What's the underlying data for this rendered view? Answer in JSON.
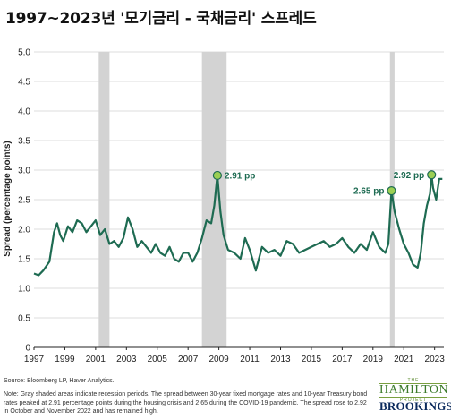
{
  "title": "1997~2023년 '모기금리 - 국채금리' 스프레드",
  "source": "Source: Bloomberg LP, Haver Analytics.",
  "note": "Note: Gray shaded areas indicate recession periods. The spread between 30-year fixed mortgage rates and 10-year Treasury bond rates peaked at 2.91 percentage points during the housing crisis and 2.65 during the COVID-19 pandemic. The spread rose to 2.92 in October and November 2022 and has remained high.",
  "logos": {
    "hamilton_top": "THE",
    "hamilton": "HAMILTON",
    "hamilton_bottom": "PROJECT",
    "brookings": "BROOKINGS"
  },
  "colors": {
    "line": "#1e6b52",
    "recession": "#d3d3d3",
    "marker": "#9bcf53"
  },
  "chart_data": {
    "type": "line",
    "ylabel": "Spread (percentage points)",
    "xlabel": "",
    "xlim": [
      1997,
      2023.6
    ],
    "ylim": [
      0,
      5.0
    ],
    "y_ticks": [
      "0",
      "0.5",
      "1.0",
      "1.5",
      "2.0",
      "2.5",
      "3.0",
      "3.5",
      "4.0",
      "4.5",
      "5.0"
    ],
    "x_ticks": [
      "1997",
      "1999",
      "2001",
      "2003",
      "2005",
      "2007",
      "2009",
      "2011",
      "2013",
      "2015",
      "2017",
      "2019",
      "2021",
      "2023"
    ],
    "grid": true,
    "recessions": [
      [
        2001.2,
        2001.9
      ],
      [
        2007.9,
        2009.5
      ],
      [
        2020.1,
        2020.4
      ]
    ],
    "annotations": [
      {
        "x": 2008.9,
        "y": 2.91,
        "label": "2.91 pp"
      },
      {
        "x": 2020.2,
        "y": 2.65,
        "label": "2.65 pp"
      },
      {
        "x": 2022.8,
        "y": 2.92,
        "label": "2.92 pp"
      }
    ],
    "series": [
      {
        "x": [
          1997.0,
          1997.3,
          1997.6,
          1998.0,
          1998.3,
          1998.5,
          1998.7,
          1998.9,
          1999.2,
          1999.5,
          1999.8,
          2000.1,
          2000.4,
          2000.7,
          2001.0,
          2001.3,
          2001.6,
          2001.9,
          2002.2,
          2002.5,
          2002.8,
          2003.1,
          2003.4,
          2003.7,
          2004.0,
          2004.3,
          2004.6,
          2004.9,
          2005.2,
          2005.5,
          2005.8,
          2006.1,
          2006.4,
          2006.7,
          2007.0,
          2007.3,
          2007.6,
          2007.9,
          2008.2,
          2008.5,
          2008.7,
          2008.9,
          2009.1,
          2009.3,
          2009.6,
          2010.0,
          2010.4,
          2010.7,
          2011.0,
          2011.4,
          2011.8,
          2012.2,
          2012.6,
          2013.0,
          2013.4,
          2013.8,
          2014.2,
          2014.6,
          2015.0,
          2015.4,
          2015.8,
          2016.2,
          2016.6,
          2017.0,
          2017.4,
          2017.8,
          2018.2,
          2018.6,
          2019.0,
          2019.4,
          2019.8,
          2020.0,
          2020.2,
          2020.4,
          2020.7,
          2021.0,
          2021.3,
          2021.6,
          2021.9,
          2022.1,
          2022.3,
          2022.5,
          2022.7,
          2022.8,
          2022.9,
          2023.1,
          2023.3,
          2023.5
        ],
        "y": [
          1.25,
          1.22,
          1.3,
          1.45,
          1.95,
          2.1,
          1.9,
          1.8,
          2.05,
          1.95,
          2.15,
          2.1,
          1.95,
          2.05,
          2.15,
          1.9,
          2.0,
          1.75,
          1.8,
          1.7,
          1.85,
          2.2,
          2.0,
          1.7,
          1.8,
          1.7,
          1.6,
          1.75,
          1.6,
          1.55,
          1.7,
          1.5,
          1.45,
          1.6,
          1.6,
          1.45,
          1.6,
          1.85,
          2.15,
          2.1,
          2.4,
          2.91,
          2.3,
          1.9,
          1.65,
          1.6,
          1.5,
          1.85,
          1.65,
          1.3,
          1.7,
          1.6,
          1.65,
          1.55,
          1.8,
          1.75,
          1.6,
          1.65,
          1.7,
          1.75,
          1.8,
          1.7,
          1.75,
          1.85,
          1.7,
          1.6,
          1.75,
          1.65,
          1.95,
          1.7,
          1.6,
          1.75,
          2.65,
          2.3,
          2.0,
          1.75,
          1.6,
          1.4,
          1.35,
          1.6,
          2.1,
          2.4,
          2.6,
          2.92,
          2.7,
          2.5,
          2.85,
          2.85
        ]
      }
    ]
  }
}
